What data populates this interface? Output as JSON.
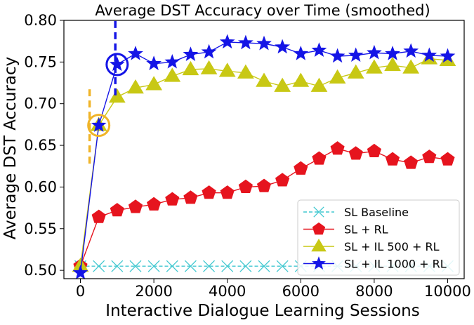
{
  "chart_data": {
    "type": "line",
    "title": "Average DST Accuracy over Time (smoothed)",
    "xlabel": "Interactive Dialogue Learning Sessions",
    "ylabel": "Average DST Accuracy",
    "xlim": [
      -450,
      10450
    ],
    "ylim": [
      0.49,
      0.8
    ],
    "x_ticks": [
      0,
      2000,
      4000,
      6000,
      8000,
      10000
    ],
    "y_ticks": [
      0.5,
      0.55,
      0.6,
      0.65,
      0.7,
      0.75,
      0.8
    ],
    "x_tick_labels": [
      "0",
      "2000",
      "4000",
      "6000",
      "8000",
      "10000"
    ],
    "y_tick_labels": [
      "0.50",
      "0.55",
      "0.60",
      "0.65",
      "0.70",
      "0.75",
      "0.80"
    ],
    "grid": false,
    "legend_position": "lower-right",
    "series": [
      {
        "name": "SL Baseline",
        "color": "#40c8d0",
        "marker": "x",
        "dashed": true,
        "x": [
          0,
          500,
          1000,
          1500,
          2000,
          2500,
          3000,
          3500,
          4000,
          4500,
          5000,
          5500,
          6000,
          6500,
          7000,
          7500,
          8000,
          8500,
          9000,
          9500,
          10000
        ],
        "y": [
          0.505,
          0.505,
          0.505,
          0.505,
          0.505,
          0.505,
          0.505,
          0.505,
          0.505,
          0.505,
          0.505,
          0.505,
          0.505,
          0.505,
          0.505,
          0.505,
          0.505,
          0.505,
          0.505,
          0.505,
          0.505
        ]
      },
      {
        "name": "SL + RL",
        "color": "#e6141e",
        "marker": "pentagon",
        "dashed": false,
        "x": [
          0,
          500,
          1000,
          1500,
          2000,
          2500,
          3000,
          3500,
          4000,
          4500,
          5000,
          5500,
          6000,
          6500,
          7000,
          7500,
          8000,
          8500,
          9000,
          9500,
          10000
        ],
        "y": [
          0.505,
          0.564,
          0.572,
          0.576,
          0.579,
          0.585,
          0.587,
          0.593,
          0.593,
          0.6,
          0.601,
          0.608,
          0.622,
          0.634,
          0.646,
          0.64,
          0.643,
          0.633,
          0.629,
          0.636,
          0.633
        ]
      },
      {
        "name": "SL + IL 500 + RL",
        "color": "#c8c814",
        "marker": "triangle",
        "dashed": false,
        "x": [
          0,
          500,
          1000,
          1500,
          2000,
          2500,
          3000,
          3500,
          4000,
          4500,
          5000,
          5500,
          6000,
          6500,
          7000,
          7500,
          8000,
          8500,
          9000,
          9500,
          10000
        ],
        "y": [
          0.505,
          0.674,
          0.708,
          0.719,
          0.723,
          0.733,
          0.741,
          0.742,
          0.739,
          0.737,
          0.727,
          0.721,
          0.727,
          0.721,
          0.731,
          0.737,
          0.743,
          0.746,
          0.743,
          0.754,
          0.752
        ]
      },
      {
        "name": "SL + IL 1000 + RL",
        "color": "#1414e6",
        "marker": "star",
        "dashed": false,
        "x": [
          0,
          500,
          1000,
          1500,
          2000,
          2500,
          3000,
          3500,
          4000,
          4500,
          5000,
          5500,
          6000,
          6500,
          7000,
          7500,
          8000,
          8500,
          9000,
          9500,
          10000
        ],
        "y": [
          0.497,
          0.674,
          0.747,
          0.76,
          0.748,
          0.75,
          0.759,
          0.762,
          0.774,
          0.773,
          0.772,
          0.768,
          0.76,
          0.764,
          0.757,
          0.758,
          0.761,
          0.76,
          0.763,
          0.758,
          0.757
        ]
      }
    ],
    "annotations": [
      {
        "type": "circle",
        "x": 500,
        "y": 0.674,
        "color": "#f0b428"
      },
      {
        "type": "vline",
        "x": 250,
        "y_from": 0.628,
        "y_to": 0.722,
        "color": "#f0b428",
        "dashed": true
      },
      {
        "type": "circle",
        "x": 1000,
        "y": 0.747,
        "color": "#1414e6"
      },
      {
        "type": "vline",
        "x": 950,
        "y_from": 0.71,
        "y_to": 0.8,
        "color": "#1414e6",
        "dashed": true
      }
    ]
  }
}
